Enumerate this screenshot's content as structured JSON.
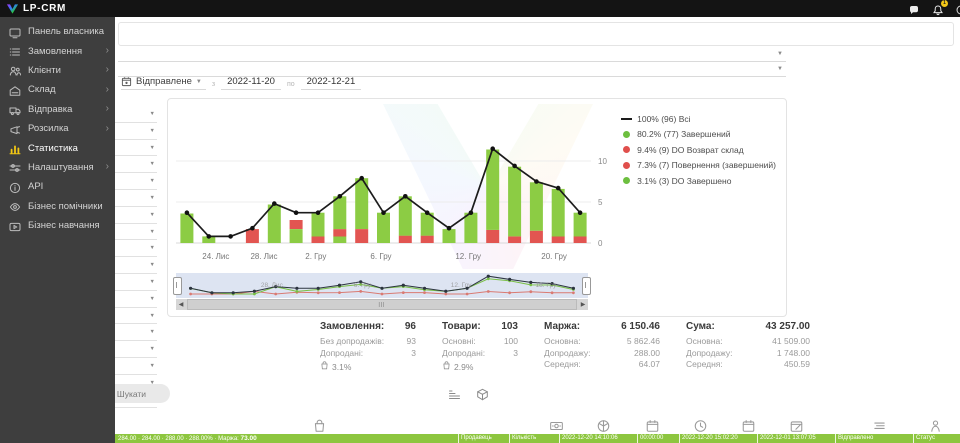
{
  "topbar": {
    "brand": "LP-CRM",
    "notification_count": "1"
  },
  "sidebar": {
    "items": [
      {
        "label": "Панель власника",
        "icon": "dashboard-icon",
        "chevron": false,
        "active": false
      },
      {
        "label": "Замовлення",
        "icon": "orders-icon",
        "chevron": true,
        "active": false
      },
      {
        "label": "Клієнти",
        "icon": "clients-icon",
        "chevron": true,
        "active": false
      },
      {
        "label": "Склад",
        "icon": "warehouse-icon",
        "chevron": true,
        "active": false
      },
      {
        "label": "Відправка",
        "icon": "shipping-icon",
        "chevron": true,
        "active": false
      },
      {
        "label": "Розсилка",
        "icon": "mailing-icon",
        "chevron": true,
        "active": false
      },
      {
        "label": "Статистика",
        "icon": "stats-icon",
        "chevron": false,
        "active": true
      },
      {
        "label": "Налаштування",
        "icon": "settings-icon",
        "chevron": true,
        "active": false
      },
      {
        "label": "API",
        "icon": "api-icon",
        "chevron": false,
        "active": false
      },
      {
        "label": "Бізнес помічники",
        "icon": "helpers-icon",
        "chevron": false,
        "active": false
      },
      {
        "label": "Бізнес навчання",
        "icon": "training-icon",
        "chevron": false,
        "active": false
      }
    ]
  },
  "filters": {
    "side_selects_count": 18,
    "search_button": "Шукати",
    "date_filter": {
      "type": "Відправлене",
      "from_label": "з",
      "from": "2022-11-20",
      "to_label": "по",
      "to": "2022-12-21"
    }
  },
  "chart_data": {
    "type": "bar",
    "title": "",
    "xlabel": "",
    "ylabel": "",
    "yticks": [
      0,
      5,
      10
    ],
    "ylim": [
      0,
      17
    ],
    "grid": true,
    "legend_position": "top-right",
    "colors": {
      "green": "#8ccc44",
      "red": "#e25551",
      "line": "#1c1c1c"
    },
    "bars": [
      {
        "segments": [
          {
            "c": "green",
            "v": 3.6
          }
        ]
      },
      {
        "segments": [
          {
            "c": "green",
            "v": 0.8
          }
        ]
      },
      {
        "segments": []
      },
      {
        "segments": [
          {
            "c": "red",
            "v": 1.7
          }
        ]
      },
      {
        "segments": [
          {
            "c": "green",
            "v": 4.7
          }
        ]
      },
      {
        "segments": [
          {
            "c": "green",
            "v": 1.7
          },
          {
            "c": "red",
            "v": 1.1
          }
        ]
      },
      {
        "segments": [
          {
            "c": "red",
            "v": 0.8
          },
          {
            "c": "green",
            "v": 2.9
          }
        ]
      },
      {
        "segments": [
          {
            "c": "green",
            "v": 0.8
          },
          {
            "c": "red",
            "v": 0.9
          },
          {
            "c": "green",
            "v": 4.0
          }
        ]
      },
      {
        "segments": [
          {
            "c": "red",
            "v": 1.7
          },
          {
            "c": "green",
            "v": 6.2
          }
        ]
      },
      {
        "segments": [
          {
            "c": "green",
            "v": 3.7
          }
        ]
      },
      {
        "segments": [
          {
            "c": "red",
            "v": 0.9
          },
          {
            "c": "green",
            "v": 4.8
          }
        ]
      },
      {
        "segments": [
          {
            "c": "red",
            "v": 0.9
          },
          {
            "c": "green",
            "v": 2.8
          }
        ]
      },
      {
        "segments": [
          {
            "c": "green",
            "v": 1.7
          }
        ]
      },
      {
        "segments": [
          {
            "c": "green",
            "v": 3.7
          }
        ]
      },
      {
        "segments": [
          {
            "c": "red",
            "v": 1.6
          },
          {
            "c": "green",
            "v": 9.8
          }
        ]
      },
      {
        "segments": [
          {
            "c": "red",
            "v": 0.8
          },
          {
            "c": "green",
            "v": 8.5
          }
        ]
      },
      {
        "segments": [
          {
            "c": "red",
            "v": 1.5
          },
          {
            "c": "green",
            "v": 5.9
          }
        ]
      },
      {
        "segments": [
          {
            "c": "red",
            "v": 0.8
          },
          {
            "c": "green",
            "v": 5.8
          }
        ]
      },
      {
        "segments": [
          {
            "c": "red",
            "v": 0.8
          },
          {
            "c": "green",
            "v": 2.9
          }
        ]
      }
    ],
    "line": {
      "name": "Всі",
      "values": [
        3.7,
        0.8,
        0.8,
        1.8,
        4.8,
        3.7,
        3.7,
        5.7,
        7.9,
        3.7,
        5.7,
        3.7,
        1.8,
        3.7,
        11.5,
        9.4,
        7.5,
        6.7,
        3.7
      ]
    },
    "x_tick_labels": [
      {
        "label": "24. Лис",
        "pct": 9.6
      },
      {
        "label": "28. Лис",
        "pct": 21.2
      },
      {
        "label": "2. Гру",
        "pct": 33.7
      },
      {
        "label": "6. Гру",
        "pct": 49.4
      },
      {
        "label": "12. Гру",
        "pct": 70.4
      },
      {
        "label": "20. Гру",
        "pct": 91.1
      }
    ],
    "legend": [
      {
        "marker": "line",
        "color": "#1c1c1c",
        "label": "100% (96) Всі"
      },
      {
        "marker": "dot",
        "color": "#6dbf3f",
        "label": "80.2% (77) Завершений"
      },
      {
        "marker": "dot",
        "color": "#e04f4c",
        "label": "9.4%   (9) DO Возврат склад"
      },
      {
        "marker": "dot",
        "color": "#e04f4c",
        "label": "7.3%   (7) Повернення (завершений)"
      },
      {
        "marker": "dot",
        "color": "#6dbf3f",
        "label": "3.1%   (3) DO Завершено"
      }
    ],
    "navigator_labels": [
      {
        "label": "28. Лис",
        "pct": 21
      },
      {
        "label": "6. Гру",
        "pct": 44
      },
      {
        "label": "12. Гру",
        "pct": 68
      },
      {
        "label": "18. Гру",
        "pct": 89
      }
    ]
  },
  "stats": {
    "groups": [
      {
        "title": "Замовлення:",
        "value": "96",
        "rows": [
          {
            "label": "Без допродажів:",
            "value": "93"
          },
          {
            "label": "Допродані:",
            "value": "3"
          }
        ],
        "percent": "3.1%"
      },
      {
        "title": "Товари:",
        "value": "103",
        "rows": [
          {
            "label": "Основні:",
            "value": "100"
          },
          {
            "label": "Допродані:",
            "value": "3"
          }
        ],
        "percent": "2.9%"
      },
      {
        "title": "Маржа:",
        "value": "6 150.46",
        "rows": [
          {
            "label": "Основна:",
            "value": "5 862.46"
          },
          {
            "label": "Допродажу:",
            "value": "288.00"
          },
          {
            "label": "Середня:",
            "value": "64.07"
          }
        ]
      },
      {
        "title": "Сума:",
        "value": "43 257.00",
        "rows": [
          {
            "label": "Основна:",
            "value": "41 509.00"
          },
          {
            "label": "Допродажу:",
            "value": "1 748.00"
          },
          {
            "label": "Середня:",
            "value": "450.59"
          }
        ]
      }
    ]
  },
  "view_toggle_icons": [
    "list-icon",
    "package-icon"
  ],
  "table_header_icons": [
    "bag-icon",
    "banknote-icon",
    "product-icon",
    "calendar-icon",
    "clock-icon",
    "calendar-icon",
    "calendar-edit-icon",
    "align-lines-icon",
    "person-icon"
  ],
  "order_row": {
    "summary": "284.00 · 284.00 · 288.00 · 288.00% · Маржа:",
    "margin_value": "73.00",
    "cells": [
      "Продавець",
      "Кількість",
      "2022-12-20 14:10:06",
      "00:00:00",
      "2022-12-20 15:02:20",
      "2022-12-01 13:07:05",
      "Відправлено",
      "Статус"
    ]
  }
}
